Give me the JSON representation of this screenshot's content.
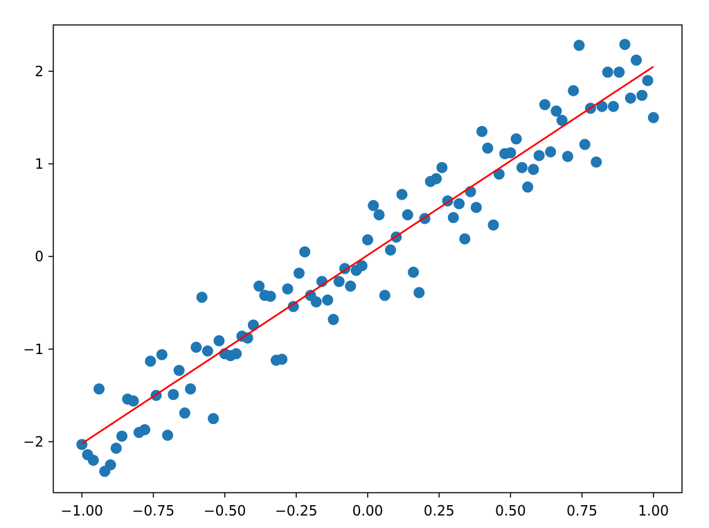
{
  "chart_data": {
    "type": "scatter",
    "title": "",
    "xlabel": "",
    "ylabel": "",
    "xlim": [
      -1.1,
      1.1
    ],
    "ylim": [
      -2.55,
      2.5
    ],
    "grid": false,
    "legend": "none",
    "x_ticks": [
      {
        "value": -1.0,
        "label": "−1.00"
      },
      {
        "value": -0.75,
        "label": "−0.75"
      },
      {
        "value": -0.5,
        "label": "−0.50"
      },
      {
        "value": -0.25,
        "label": "−0.25"
      },
      {
        "value": 0.0,
        "label": "0.00"
      },
      {
        "value": 0.25,
        "label": "0.25"
      },
      {
        "value": 0.5,
        "label": "0.50"
      },
      {
        "value": 0.75,
        "label": "0.75"
      },
      {
        "value": 1.0,
        "label": "1.00"
      }
    ],
    "y_ticks": [
      {
        "value": -2,
        "label": "−2"
      },
      {
        "value": -1,
        "label": "−1"
      },
      {
        "value": 0,
        "label": "0"
      },
      {
        "value": 1,
        "label": "1"
      },
      {
        "value": 2,
        "label": "2"
      }
    ],
    "series": [
      {
        "kind": "scatter",
        "color": "#1f77b4",
        "points": [
          [
            -1.0,
            -2.03
          ],
          [
            -0.98,
            -2.14
          ],
          [
            -0.96,
            -2.2
          ],
          [
            -0.94,
            -1.43
          ],
          [
            -0.92,
            -2.32
          ],
          [
            -0.9,
            -2.25
          ],
          [
            -0.88,
            -2.07
          ],
          [
            -0.86,
            -1.94
          ],
          [
            -0.84,
            -1.54
          ],
          [
            -0.82,
            -1.56
          ],
          [
            -0.8,
            -1.9
          ],
          [
            -0.78,
            -1.87
          ],
          [
            -0.76,
            -1.13
          ],
          [
            -0.74,
            -1.5
          ],
          [
            -0.72,
            -1.06
          ],
          [
            -0.7,
            -1.93
          ],
          [
            -0.68,
            -1.49
          ],
          [
            -0.66,
            -1.23
          ],
          [
            -0.64,
            -1.69
          ],
          [
            -0.62,
            -1.43
          ],
          [
            -0.6,
            -0.98
          ],
          [
            -0.58,
            -0.44
          ],
          [
            -0.56,
            -1.02
          ],
          [
            -0.54,
            -1.75
          ],
          [
            -0.52,
            -0.91
          ],
          [
            -0.5,
            -1.05
          ],
          [
            -0.48,
            -1.07
          ],
          [
            -0.46,
            -1.05
          ],
          [
            -0.44,
            -0.86
          ],
          [
            -0.42,
            -0.88
          ],
          [
            -0.4,
            -0.74
          ],
          [
            -0.38,
            -0.32
          ],
          [
            -0.36,
            -0.42
          ],
          [
            -0.34,
            -0.43
          ],
          [
            -0.32,
            -1.12
          ],
          [
            -0.3,
            -1.11
          ],
          [
            -0.28,
            -0.35
          ],
          [
            -0.26,
            -0.54
          ],
          [
            -0.24,
            -0.18
          ],
          [
            -0.22,
            0.05
          ],
          [
            -0.2,
            -0.42
          ],
          [
            -0.18,
            -0.49
          ],
          [
            -0.16,
            -0.27
          ],
          [
            -0.14,
            -0.47
          ],
          [
            -0.12,
            -0.68
          ],
          [
            -0.1,
            -0.27
          ],
          [
            -0.08,
            -0.13
          ],
          [
            -0.06,
            -0.32
          ],
          [
            -0.04,
            -0.15
          ],
          [
            -0.02,
            -0.1
          ],
          [
            0.0,
            0.18
          ],
          [
            0.02,
            0.55
          ],
          [
            0.04,
            0.45
          ],
          [
            0.06,
            -0.42
          ],
          [
            0.08,
            0.07
          ],
          [
            0.1,
            0.21
          ],
          [
            0.12,
            0.67
          ],
          [
            0.14,
            0.45
          ],
          [
            0.16,
            -0.17
          ],
          [
            0.18,
            -0.39
          ],
          [
            0.2,
            0.41
          ],
          [
            0.22,
            0.81
          ],
          [
            0.24,
            0.84
          ],
          [
            0.26,
            0.96
          ],
          [
            0.28,
            0.6
          ],
          [
            0.3,
            0.42
          ],
          [
            0.32,
            0.57
          ],
          [
            0.34,
            0.19
          ],
          [
            0.36,
            0.7
          ],
          [
            0.38,
            0.53
          ],
          [
            0.4,
            1.35
          ],
          [
            0.42,
            1.17
          ],
          [
            0.44,
            0.34
          ],
          [
            0.46,
            0.89
          ],
          [
            0.48,
            1.11
          ],
          [
            0.5,
            1.12
          ],
          [
            0.52,
            1.27
          ],
          [
            0.54,
            0.96
          ],
          [
            0.56,
            0.75
          ],
          [
            0.58,
            0.94
          ],
          [
            0.6,
            1.09
          ],
          [
            0.62,
            1.64
          ],
          [
            0.64,
            1.13
          ],
          [
            0.66,
            1.57
          ],
          [
            0.68,
            1.47
          ],
          [
            0.7,
            1.08
          ],
          [
            0.72,
            1.79
          ],
          [
            0.74,
            2.28
          ],
          [
            0.76,
            1.21
          ],
          [
            0.78,
            1.6
          ],
          [
            0.8,
            1.02
          ],
          [
            0.82,
            1.62
          ],
          [
            0.84,
            1.99
          ],
          [
            0.86,
            1.62
          ],
          [
            0.88,
            1.99
          ],
          [
            0.9,
            2.29
          ],
          [
            0.92,
            1.71
          ],
          [
            0.94,
            2.12
          ],
          [
            0.96,
            1.74
          ],
          [
            0.98,
            1.9
          ],
          [
            1.0,
            1.5
          ]
        ]
      },
      {
        "kind": "line",
        "color": "#ff0000",
        "points": [
          [
            -1.0,
            -2.02
          ],
          [
            1.0,
            2.05
          ]
        ]
      }
    ]
  }
}
